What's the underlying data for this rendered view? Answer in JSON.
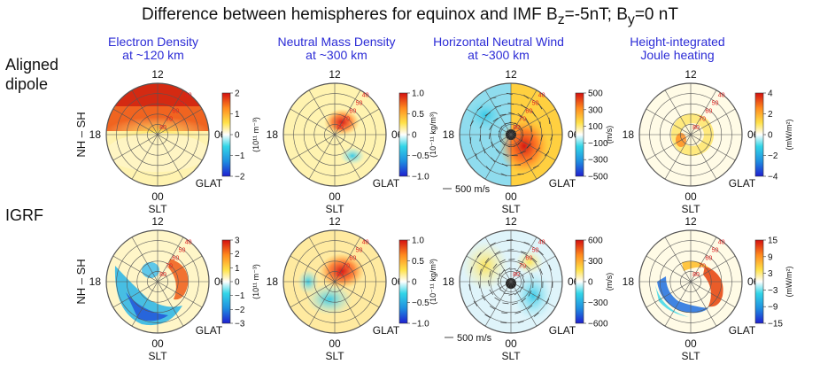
{
  "title": {
    "main": "Difference between hemispheres for equinox and IMF B",
    "bz_sub": "z",
    "bz_val": "=-5nT; B",
    "by_sub": "y",
    "by_val": "=0 nT"
  },
  "columns": [
    {
      "line1": "Electron Density",
      "line2": "at ~120 km"
    },
    {
      "line1": "Neutral Mass Density",
      "line2": "at ~300 km"
    },
    {
      "line1": "Horizontal Neutral Wind",
      "line2": "at ~300 km"
    },
    {
      "line1": "Height-integrated",
      "line2": "Joule heating"
    }
  ],
  "rows": [
    {
      "label_line1": "Aligned",
      "label_line2": "dipole"
    },
    {
      "label_line1": "IGRF",
      "label_line2": ""
    }
  ],
  "axis": {
    "top": "12",
    "left": "18",
    "right": "06",
    "bottom": "00",
    "slt": "SLT",
    "glat": "GLAT",
    "ylabel": "NH – SH"
  },
  "lat_labels": [
    "80",
    "70",
    "60",
    "50",
    "40"
  ],
  "wind_scale": "500 m/s",
  "colorbars": [
    {
      "ticks": [
        "2",
        "1",
        "0",
        "−1",
        "−2"
      ],
      "unit": "(10¹¹ m⁻³)"
    },
    {
      "ticks": [
        "1.0",
        "0.5",
        "0",
        "−0.5",
        "−1.0"
      ],
      "unit": "(10⁻¹¹ kg/m³)"
    },
    {
      "ticks": [
        "500",
        "300",
        "100",
        "−100",
        "−300",
        "−500"
      ],
      "unit": "(m/s)"
    },
    {
      "ticks": [
        "4",
        "2",
        "0",
        "−2",
        "−4"
      ],
      "unit": "(mW/m²)"
    },
    {
      "ticks": [
        "3",
        "2",
        "1",
        "0",
        "−1",
        "−2",
        "−3"
      ],
      "unit": "(10¹¹ m⁻³)"
    },
    {
      "ticks": [
        "1.0",
        "0.5",
        "0",
        "−0.5",
        "−1.0"
      ],
      "unit": "(10⁻¹¹ kg/m³)"
    },
    {
      "ticks": [
        "600",
        "300",
        "0",
        "−300",
        "−600"
      ],
      "unit": "(m/s)"
    },
    {
      "ticks": [
        "15",
        "9",
        "3",
        "−3",
        "−9",
        "−15"
      ],
      "unit": "(mW/m²)"
    }
  ],
  "colors": {
    "column_heading": "#2b2bd6",
    "lat_label": "#e02020",
    "cmap": [
      "#1f1fd0",
      "#1f8fe0",
      "#33d6e8",
      "#ffffff",
      "#ffe24a",
      "#ff8a1e",
      "#d41010"
    ]
  }
}
